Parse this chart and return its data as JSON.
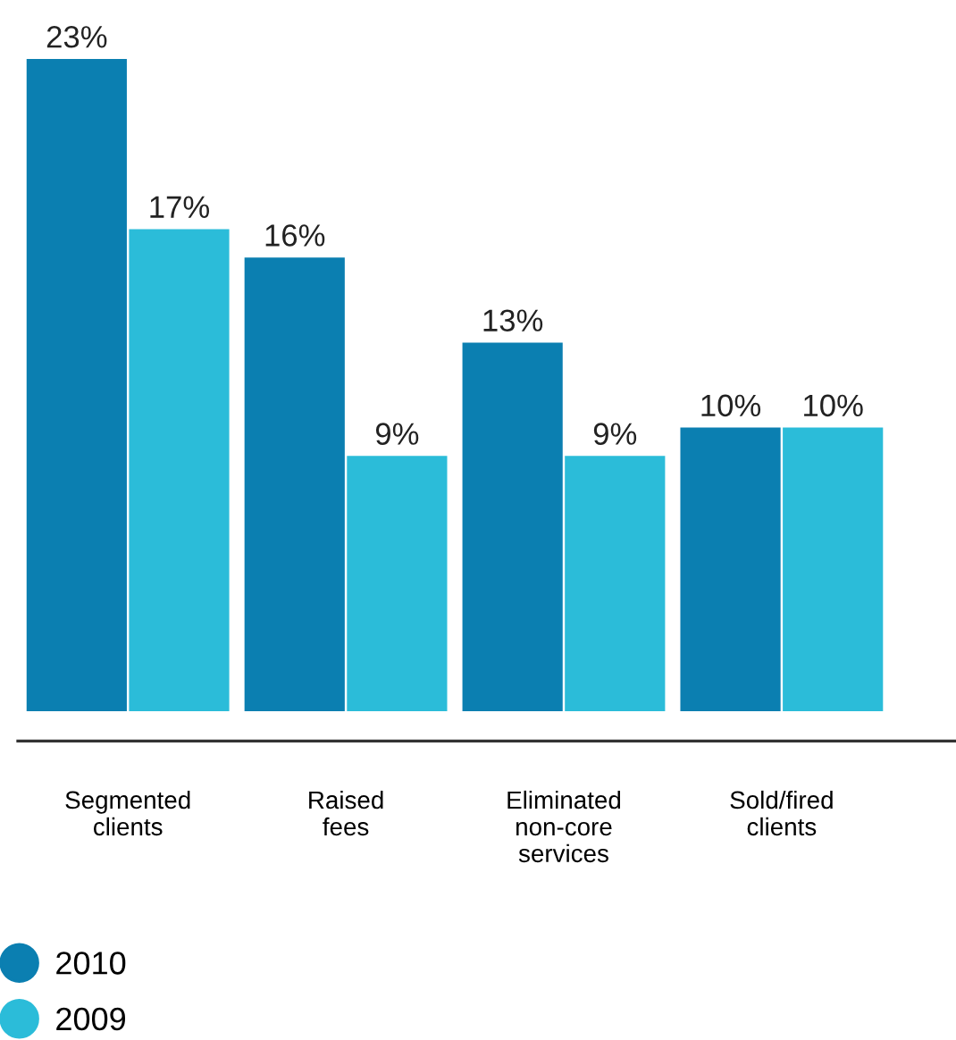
{
  "chart_data": {
    "type": "bar",
    "categories": [
      "Segmented\nclients",
      "Raised\nfees",
      "Eliminated\nnon-core\nservices",
      "Sold/fired\nclients"
    ],
    "series": [
      {
        "name": "2010",
        "color": "#0b7fb1",
        "values": [
          23,
          16,
          13,
          10
        ],
        "value_labels": [
          "23%",
          "16%",
          "13%",
          "10%"
        ]
      },
      {
        "name": "2009",
        "color": "#2bbcd9",
        "values": [
          17,
          9,
          9,
          10
        ],
        "value_labels": [
          "17%",
          "9%",
          "9%",
          "10%"
        ]
      }
    ],
    "legend": "bottom left",
    "grid": false,
    "marker": "circle"
  }
}
